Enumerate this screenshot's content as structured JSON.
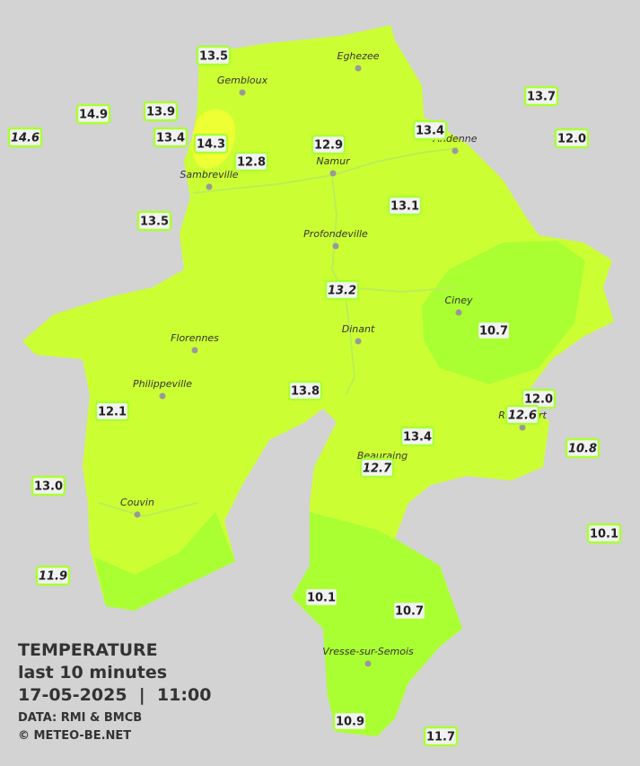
{
  "map": {
    "legend": {
      "title": "TEMPERATURE",
      "subtitle": "last 10 minutes",
      "datetime": "17-05-2025  |  11:00",
      "source": "DATA: RMI & BMCB",
      "copyright": "© METEO-BE.NET"
    },
    "cities": [
      "Eghezee",
      "Gembloux",
      "Andenne",
      "Namur",
      "Sambreville",
      "Profondeville",
      "Ciney",
      "Dinant",
      "Florennes",
      "Philippeville",
      "Rochefort",
      "Beauraing",
      "Couvin",
      "Vresse-sur-Semois"
    ],
    "stations": [
      "13.5",
      "14.9",
      "13.9",
      "14.6",
      "13.4",
      "14.3",
      "12.8",
      "12.9",
      "13.4",
      "13.7",
      "12.0",
      "13.5",
      "13.1",
      "13.2",
      "10.7",
      "13.8",
      "12.1",
      "12.0",
      "12.6",
      "13.4",
      "12.7",
      "10.8",
      "13.0",
      "10.1",
      "11.9",
      "10.1",
      "10.7",
      "10.9",
      "11.7"
    ]
  }
}
